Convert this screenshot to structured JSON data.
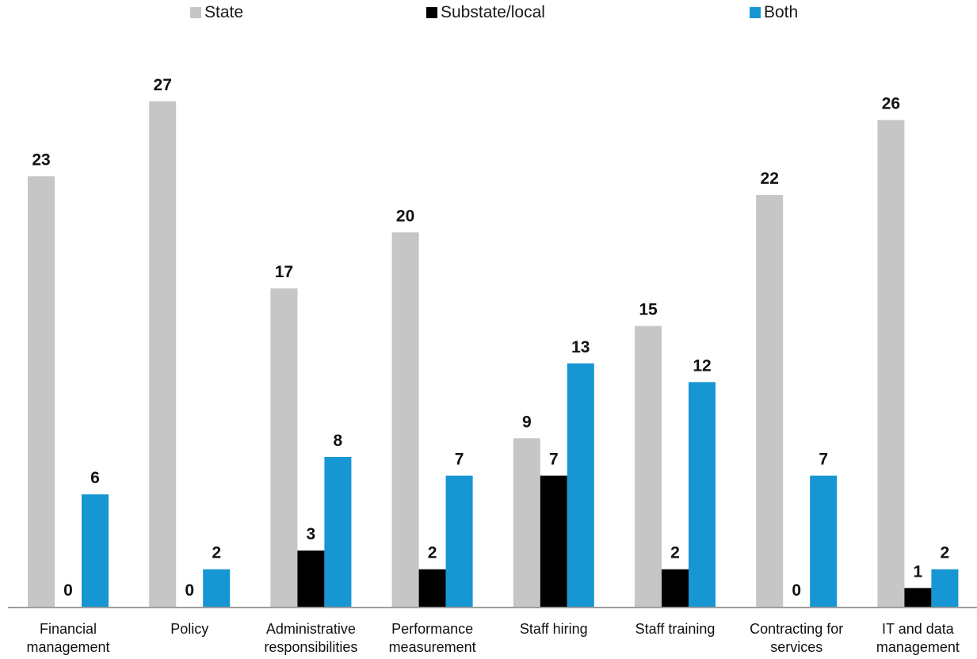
{
  "chart_data": {
    "type": "bar",
    "categories": [
      [
        "Financial",
        "management"
      ],
      [
        "Policy"
      ],
      [
        "Administrative",
        "responsibilities"
      ],
      [
        "Performance",
        "measurement"
      ],
      [
        "Staff hiring"
      ],
      [
        "Staff training"
      ],
      [
        "Contracting for",
        "services"
      ],
      [
        "IT and data",
        "management"
      ]
    ],
    "series": [
      {
        "name": "State",
        "color": "#c6c6c6",
        "values": [
          23,
          27,
          17,
          20,
          9,
          15,
          22,
          26
        ]
      },
      {
        "name": "Substate/local",
        "color": "#000000",
        "values": [
          0,
          0,
          3,
          2,
          7,
          2,
          0,
          1
        ]
      },
      {
        "name": "Both",
        "color": "#1696d2",
        "values": [
          6,
          2,
          8,
          7,
          13,
          12,
          7,
          2
        ]
      }
    ],
    "ylim": [
      0,
      30
    ],
    "legend_position": "top",
    "grid": false,
    "title": "",
    "xlabel": "",
    "ylabel": ""
  }
}
